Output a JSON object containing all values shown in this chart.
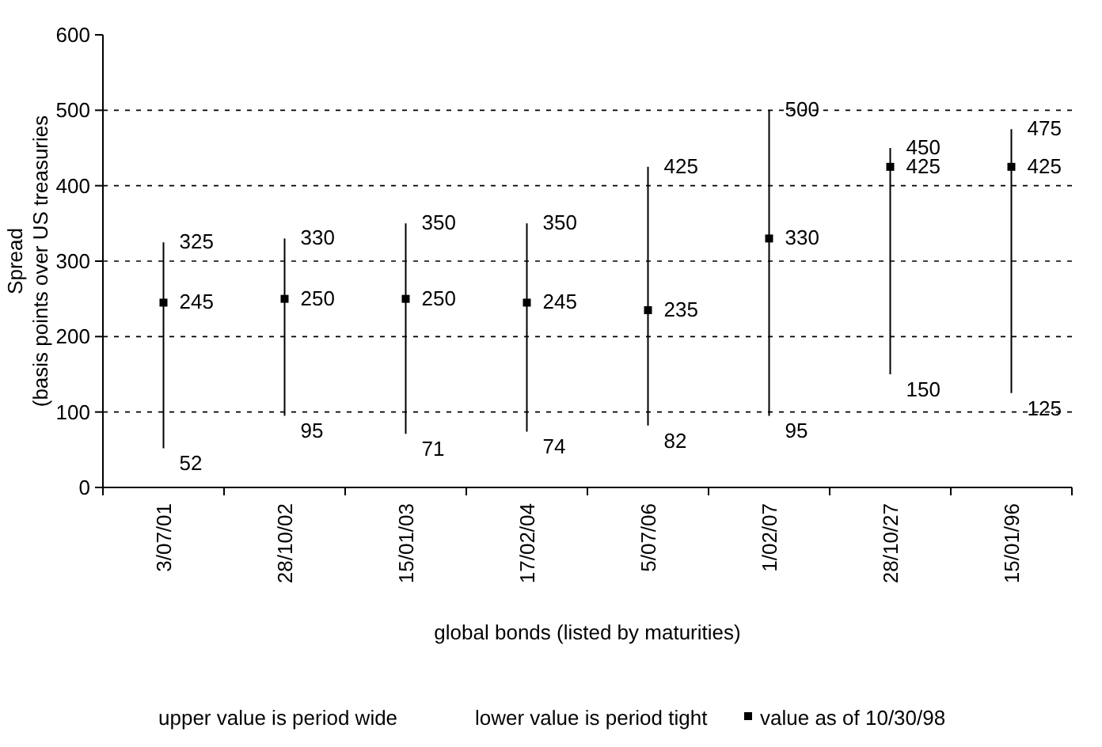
{
  "chart_data": {
    "type": "scatter",
    "ylabel": "Spread\n(basis points over US treasuries",
    "xlabel": "global bonds (listed by maturities)",
    "categories": [
      "3/07/01",
      "28/10/02",
      "15/01/03",
      "17/02/04",
      "5/07/06",
      "1/02/07",
      "28/10/27",
      "15/01/96"
    ],
    "series": [
      {
        "name": "value as of 10/30/98",
        "color": "#000000",
        "values": [
          245,
          250,
          250,
          245,
          235,
          330,
          425,
          425
        ],
        "errors": [
          [
            52,
            325
          ],
          [
            95,
            330
          ],
          [
            71,
            350
          ],
          [
            74,
            350
          ],
          [
            82,
            425
          ],
          [
            95,
            500
          ],
          [
            150,
            450
          ],
          [
            125,
            475
          ]
        ]
      }
    ],
    "marker": "square",
    "ylim": [
      0,
      600
    ],
    "yticks": [
      0,
      100,
      200,
      300,
      400,
      500,
      600
    ],
    "grid": "y",
    "data_labels": true,
    "legend": "bottom",
    "annotations": [
      "upper value is period wide",
      "lower value is period tight",
      "325",
      "52",
      "330",
      "95",
      "350",
      "71",
      "350",
      "74",
      "425",
      "82",
      "500",
      "95",
      "450",
      "150",
      "475",
      "125"
    ]
  }
}
